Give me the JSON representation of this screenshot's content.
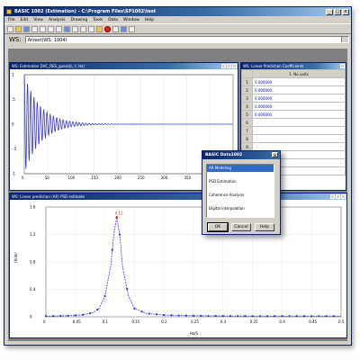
{
  "window": {
    "title": "BASIC 1002 (Estimation) - C:\\Program Files\\SP1002\\test",
    "min_label": "_",
    "max_label": "□",
    "close_label": "×"
  },
  "menu": [
    "File",
    "Edit",
    "View",
    "Analysis",
    "Drawing",
    "Tools",
    "Data",
    "Window",
    "Help"
  ],
  "workspace": {
    "label": "WS:",
    "value": "Arzest(WS: 1004)"
  },
  "panel1": {
    "title": "WS: Estimation DVC_RES_guess(L, t, Hz)",
    "xticks": [
      "0",
      "50",
      "100",
      "150",
      "200",
      "250",
      "300",
      "350",
      "400",
      "450"
    ],
    "yticks": [
      "1",
      ".5",
      "0",
      "-.5",
      "-1"
    ]
  },
  "panel2": {
    "title": "WS: Linear Prediction Coefficients",
    "col_header": "1. No units",
    "rows": [
      {
        "n": "1",
        "v": "0.000000"
      },
      {
        "n": "2",
        "v": "0.000000"
      },
      {
        "n": "3",
        "v": "0.000000"
      },
      {
        "n": "4",
        "v": "0.000000"
      },
      {
        "n": "5",
        "v": "0.000000"
      },
      {
        "n": "6",
        "v": ""
      },
      {
        "n": "7",
        "v": ""
      },
      {
        "n": "8",
        "v": ""
      },
      {
        "n": "9",
        "v": ""
      },
      {
        "n": "10",
        "v": ""
      },
      {
        "n": "11",
        "v": ""
      },
      {
        "n": "12",
        "v": ""
      }
    ]
  },
  "panel3": {
    "title": "WS: Linear prediction (AR) PSD estimate",
    "ylabel": "Units²",
    "xlabel": "Hz/S",
    "peak_label": "0.12",
    "xticks": [
      "0",
      "0.05",
      "0.1",
      "0.15",
      "0.2",
      "0.25",
      "0.3",
      "0.35",
      "0.4",
      "0.45",
      "0.5"
    ],
    "yticks": [
      "1.6",
      "1.2",
      "0.8",
      "0.4",
      "0"
    ]
  },
  "dialog": {
    "title": "BASIC Data1002",
    "close_label": "×",
    "items": [
      "AR Modeling",
      "PSD Estimation",
      "Coherence Analysis",
      "Digital Interpolation"
    ],
    "selected_index": 0,
    "ok_label": "OK",
    "cancel_label": "Cancel",
    "help_label": "Help"
  },
  "colors": {
    "plot_line": "#3b3bd6",
    "titlebar": "#0a246a",
    "selection": "#316ac5"
  },
  "chart_data": [
    {
      "type": "line",
      "title": "",
      "x_range": [
        0,
        450
      ],
      "y_range": [
        -1,
        1
      ],
      "series_description": "damped sinusoid decaying to 0 by about x=150",
      "x": [
        0,
        50,
        100,
        150,
        200,
        250,
        300,
        350,
        400,
        450
      ],
      "y_envelope": [
        1.0,
        0.45,
        0.15,
        0.03,
        0,
        0,
        0,
        0,
        0,
        0
      ]
    },
    {
      "type": "line",
      "title": "",
      "x_range": [
        0,
        0.5
      ],
      "y_range": [
        0,
        1.6
      ],
      "x": [
        0,
        0.02,
        0.04,
        0.06,
        0.08,
        0.09,
        0.1,
        0.11,
        0.115,
        0.12,
        0.125,
        0.13,
        0.14,
        0.15,
        0.17,
        0.2,
        0.25,
        0.3,
        0.35,
        0.4,
        0.45,
        0.5
      ],
      "y": [
        0.01,
        0.012,
        0.016,
        0.025,
        0.06,
        0.12,
        0.3,
        0.75,
        1.2,
        1.45,
        1.2,
        0.72,
        0.3,
        0.12,
        0.05,
        0.025,
        0.015,
        0.012,
        0.01,
        0.01,
        0.01,
        0.01
      ]
    }
  ]
}
